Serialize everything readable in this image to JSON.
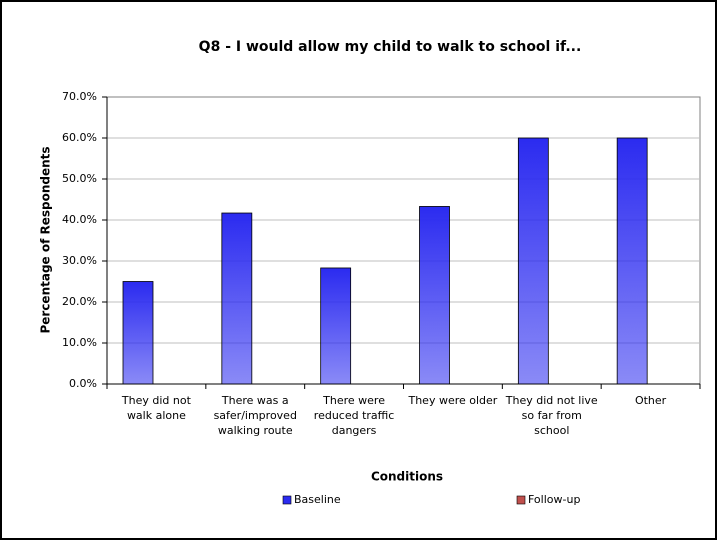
{
  "chart_data": {
    "type": "bar",
    "title": "Q8 - I would allow my child to walk to school if...",
    "x_label": "Conditions",
    "y_label": "Percentage of Respondents",
    "categories": [
      [
        "They did not",
        "walk alone"
      ],
      [
        "There was a",
        "safer/improved",
        "walking route"
      ],
      [
        "There were",
        "reduced traffic",
        "dangers"
      ],
      [
        "They were older"
      ],
      [
        "They did not live",
        "so far from",
        "school"
      ],
      [
        "Other"
      ]
    ],
    "series": [
      {
        "name": "Baseline",
        "color": "#2b2bf0",
        "values": [
          25.0,
          41.7,
          28.3,
          43.3,
          60.0,
          60.0
        ]
      },
      {
        "name": "Follow-up",
        "color": "#c0504d",
        "values": [
          null,
          null,
          null,
          null,
          null,
          null
        ]
      }
    ],
    "ylim": [
      0,
      70
    ],
    "yticks": [
      {
        "value": 0,
        "label": "0.0%"
      },
      {
        "value": 10,
        "label": "10.0%"
      },
      {
        "value": 20,
        "label": "20.0%"
      },
      {
        "value": 30,
        "label": "30.0%"
      },
      {
        "value": 40,
        "label": "40.0%"
      },
      {
        "value": 50,
        "label": "50.0%"
      },
      {
        "value": 60,
        "label": "60.0%"
      },
      {
        "value": 70,
        "label": "70.0%"
      }
    ],
    "grid": true
  }
}
